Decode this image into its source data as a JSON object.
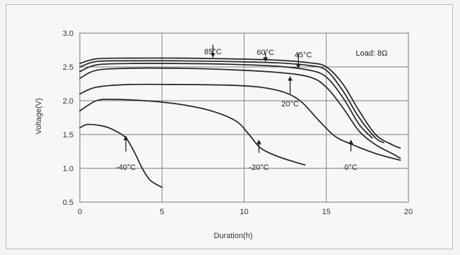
{
  "chart_data": {
    "type": "line",
    "title": "",
    "xlabel": "Duration(h)",
    "ylabel": "Voltage(V)",
    "xlim": [
      0,
      20
    ],
    "ylim": [
      0.5,
      3.0
    ],
    "x_ticks": [
      "0",
      "5",
      "10",
      "15",
      "20"
    ],
    "y_ticks": [
      "0.5",
      "1.0",
      "1.5",
      "2.0",
      "2.5",
      "3.0"
    ],
    "grid": true,
    "legend": "none",
    "annotation": "Load: 8Ω",
    "series": [
      {
        "name": "85°C",
        "points": [
          [
            0,
            2.55
          ],
          [
            1,
            2.62
          ],
          [
            3,
            2.63
          ],
          [
            6,
            2.63
          ],
          [
            9,
            2.62
          ],
          [
            12,
            2.6
          ],
          [
            14,
            2.56
          ],
          [
            15,
            2.5
          ],
          [
            16,
            2.25
          ],
          [
            17,
            1.85
          ],
          [
            18,
            1.5
          ],
          [
            19,
            1.35
          ],
          [
            19.5,
            1.3
          ]
        ]
      },
      {
        "name": "60°C",
        "points": [
          [
            0,
            2.5
          ],
          [
            1,
            2.58
          ],
          [
            3,
            2.59
          ],
          [
            6,
            2.59
          ],
          [
            9,
            2.58
          ],
          [
            12,
            2.56
          ],
          [
            14,
            2.52
          ],
          [
            15,
            2.45
          ],
          [
            16,
            2.15
          ],
          [
            17,
            1.75
          ],
          [
            18,
            1.45
          ],
          [
            18.5,
            1.38
          ]
        ]
      },
      {
        "name": "45°C",
        "points": [
          [
            0,
            2.43
          ],
          [
            1,
            2.53
          ],
          [
            3,
            2.55
          ],
          [
            6,
            2.55
          ],
          [
            9,
            2.54
          ],
          [
            12,
            2.51
          ],
          [
            14,
            2.45
          ],
          [
            15,
            2.35
          ],
          [
            16,
            2.05
          ],
          [
            17,
            1.65
          ],
          [
            17.8,
            1.45
          ]
        ]
      },
      {
        "name": "20°C",
        "points": [
          [
            0,
            2.33
          ],
          [
            1,
            2.45
          ],
          [
            3,
            2.48
          ],
          [
            6,
            2.48
          ],
          [
            9,
            2.46
          ],
          [
            12,
            2.42
          ],
          [
            14,
            2.35
          ],
          [
            15,
            2.2
          ],
          [
            16,
            1.9
          ],
          [
            17,
            1.55
          ],
          [
            18,
            1.35
          ],
          [
            19,
            1.22
          ],
          [
            19.5,
            1.15
          ]
        ]
      },
      {
        "name": "0°C",
        "points": [
          [
            0,
            2.1
          ],
          [
            1,
            2.2
          ],
          [
            3,
            2.24
          ],
          [
            6,
            2.24
          ],
          [
            9,
            2.23
          ],
          [
            11,
            2.2
          ],
          [
            12.5,
            2.12
          ],
          [
            13.5,
            1.98
          ],
          [
            14.5,
            1.72
          ],
          [
            15.5,
            1.48
          ],
          [
            16.5,
            1.36
          ],
          [
            18,
            1.22
          ],
          [
            19.5,
            1.12
          ]
        ]
      },
      {
        "name": "-20°C",
        "points": [
          [
            0,
            1.85
          ],
          [
            1,
            2.0
          ],
          [
            2,
            2.02
          ],
          [
            4,
            2.0
          ],
          [
            6,
            1.95
          ],
          [
            8,
            1.85
          ],
          [
            9.5,
            1.7
          ],
          [
            10.3,
            1.5
          ],
          [
            11,
            1.3
          ],
          [
            12,
            1.18
          ],
          [
            13,
            1.1
          ],
          [
            13.7,
            1.05
          ]
        ]
      },
      {
        "name": "-40°C",
        "points": [
          [
            0,
            1.6
          ],
          [
            0.5,
            1.65
          ],
          [
            1.5,
            1.62
          ],
          [
            2.2,
            1.55
          ],
          [
            2.8,
            1.45
          ],
          [
            3.3,
            1.25
          ],
          [
            3.8,
            1.0
          ],
          [
            4.3,
            0.82
          ],
          [
            5,
            0.72
          ]
        ]
      }
    ],
    "curve_labels": [
      {
        "text": "85°C",
        "at": [
          8.1,
          2.73
        ],
        "arrow_from": [
          8.1,
          2.83
        ],
        "arrow_to": [
          8.1,
          2.64
        ]
      },
      {
        "text": "60°C",
        "at": [
          11.3,
          2.72
        ],
        "arrow_from": [
          11.3,
          2.72
        ],
        "arrow_to": [
          11.3,
          2.58
        ]
      },
      {
        "text": "45°C",
        "at": [
          13.6,
          2.68
        ],
        "arrow_from": [
          13.3,
          2.7
        ],
        "arrow_to": [
          13.3,
          2.48
        ]
      },
      {
        "text": "20°C",
        "at": [
          12.8,
          1.96
        ],
        "arrow_from": [
          12.8,
          2.1
        ],
        "arrow_to": [
          12.8,
          2.36
        ]
      },
      {
        "text": "0°C",
        "at": [
          16.5,
          1.02
        ],
        "arrow_from": [
          16.5,
          1.25
        ],
        "arrow_to": [
          16.5,
          1.42
        ]
      },
      {
        "text": "-20°C",
        "at": [
          10.9,
          1.02
        ],
        "arrow_from": [
          10.9,
          1.23
        ],
        "arrow_to": [
          10.9,
          1.42
        ]
      },
      {
        "text": "-40°C",
        "at": [
          2.8,
          1.02
        ],
        "arrow_from": [
          2.8,
          1.25
        ],
        "arrow_to": [
          2.8,
          1.48
        ]
      }
    ]
  }
}
